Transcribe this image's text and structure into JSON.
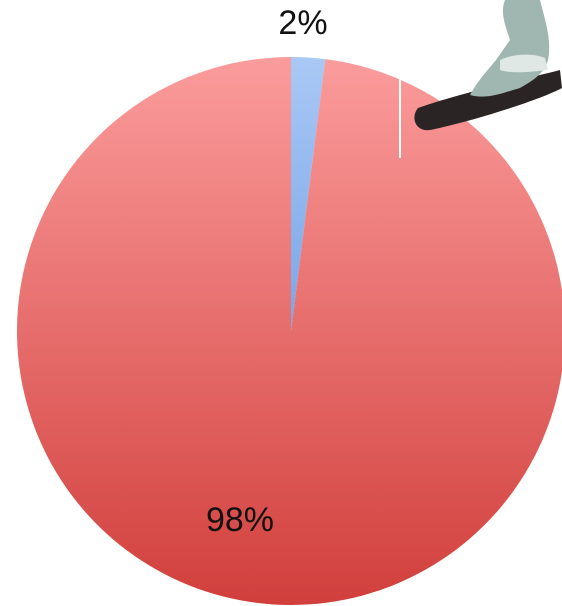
{
  "chart_data": {
    "type": "pie",
    "values": [
      2,
      98
    ],
    "value_labels": [
      "2%",
      "98%"
    ],
    "colors": [
      [
        "#a9c8f5",
        "#7aa5e8"
      ],
      [
        "#fb9c9c",
        "#d13f3c"
      ]
    ]
  }
}
